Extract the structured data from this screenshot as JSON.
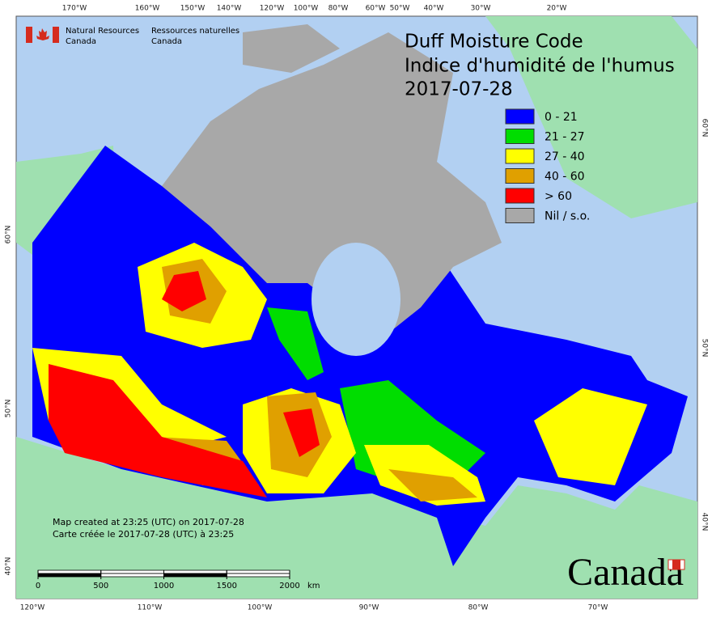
{
  "header": {
    "dept_en": "Natural Resources",
    "dept_en2": "Canada",
    "dept_fr": "Ressources naturelles",
    "dept_fr2": "Canada"
  },
  "title": [
    "Duff Moisture Code",
    "Indice d'humidité de l'humus",
    "2017-07-28"
  ],
  "legend": [
    {
      "label": "0 - 21",
      "color": "#0000ff"
    },
    {
      "label": "21 - 27",
      "color": "#00dd00"
    },
    {
      "label": "27 - 40",
      "color": "#ffff00"
    },
    {
      "label": "40 - 60",
      "color": "#e0a000"
    },
    {
      "label": "> 60",
      "color": "#ff0000"
    },
    {
      "label": "Nil / s.o.",
      "color": "#a8a8a8"
    }
  ],
  "footer": [
    "Map created at 23:25 (UTC) on 2017-07-28",
    "Carte créée le 2017-07-28 (UTC) à 23:25"
  ],
  "scale": {
    "ticks": [
      0,
      500,
      1000,
      1500,
      2000
    ],
    "unit": "km"
  },
  "top_labels": [
    "170°W",
    "160°W",
    "150°W",
    "140°W",
    "120°W",
    "100°W",
    "80°W",
    "60°W",
    "50°W",
    "40°W",
    "30°W",
    "20°W"
  ],
  "bottom_labels": [
    "120°W",
    "110°W",
    "100°W",
    "90°W",
    "80°W",
    "70°W"
  ],
  "left_labels": [
    "60°N",
    "50°N",
    "40°N"
  ],
  "right_labels": [
    "60°N",
    "50°N",
    "40°N"
  ],
  "wordmark": "Canada"
}
